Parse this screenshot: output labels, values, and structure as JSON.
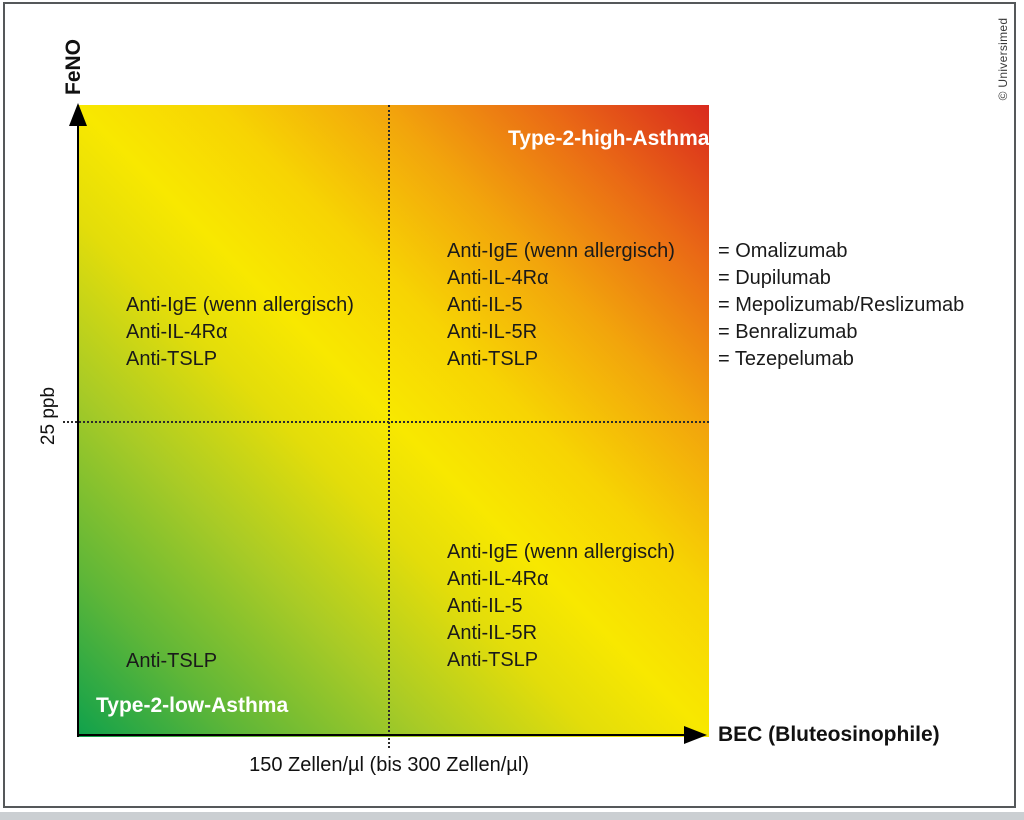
{
  "figure": {
    "copyright": "© Universimed"
  },
  "axes": {
    "y": {
      "label": "FeNO",
      "threshold_tick": "25 ppb"
    },
    "x": {
      "label": "BEC (Bluteosinophile)",
      "threshold_tick": "150 Zellen/µl (bis 300 Zellen/µl)"
    }
  },
  "quadrant_titles": {
    "high": "Type-2-high-Asthma",
    "low": "Type-2-low-Asthma"
  },
  "quadrants": {
    "top_left": [
      "Anti-IgE (wenn allergisch)",
      "Anti-IL-4Rα",
      "Anti-TSLP"
    ],
    "top_right": [
      "Anti-IgE (wenn allergisch)",
      "Anti-IL-4Rα",
      "Anti-IL-5",
      "Anti-IL-5R",
      "Anti-TSLP"
    ],
    "bottom_right": [
      "Anti-IgE (wenn allergisch)",
      "Anti-IL-4Rα",
      "Anti-IL-5",
      "Anti-IL-5R",
      "Anti-TSLP"
    ],
    "bottom_left": [
      "Anti-TSLP"
    ]
  },
  "legend": [
    "= Omalizumab",
    "= Dupilumab",
    "= Mepolizumab/Reslizumab",
    "= Benralizumab",
    "= Tezepelumab"
  ],
  "colors": {
    "green_low": "#0fa14c",
    "yellow_mid": "#f8e800",
    "orange_high": "#f2a50c",
    "red_high": "#d92a1e",
    "frame_border": "#55585a"
  }
}
